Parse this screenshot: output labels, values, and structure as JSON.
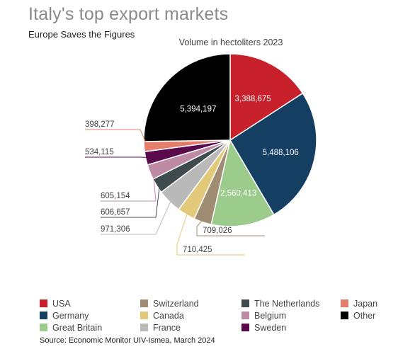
{
  "header": {
    "title": "Italy's top export markets",
    "subtitle": "Europe Saves the Figures"
  },
  "chart_data": {
    "type": "pie",
    "title": "Volume in hectoliters 2023",
    "slices": [
      {
        "name": "USA",
        "value": 3388675,
        "label": "3,388,675",
        "color": "#c8202a"
      },
      {
        "name": "Germany",
        "value": 5488106,
        "label": "5,488,106",
        "color": "#153e63"
      },
      {
        "name": "Great Britain",
        "value": 2560413,
        "label": "2,560,413",
        "color": "#9ccc8b"
      },
      {
        "name": "Switzerland",
        "value": 709026,
        "label": "709,026",
        "color": "#a08c72"
      },
      {
        "name": "Canada",
        "value": 710425,
        "label": "710,425",
        "color": "#e3c97a"
      },
      {
        "name": "France",
        "value": 971306,
        "label": "971,306",
        "color": "#b9b9b9"
      },
      {
        "name": "The Netherlands",
        "value": 606657,
        "label": "606,657",
        "color": "#3f4a4f"
      },
      {
        "name": "Belgium",
        "value": 605154,
        "label": "605,154",
        "color": "#bf8aa3"
      },
      {
        "name": "Sweden",
        "value": 534115,
        "label": "534,115",
        "color": "#5a0a4a"
      },
      {
        "name": "Japan",
        "value": 398277,
        "label": "398,277",
        "color": "#e47e6b"
      },
      {
        "name": "Other",
        "value": 5394197,
        "label": "5,394,197",
        "color": "#000000"
      }
    ],
    "legend": [
      {
        "name": "USA",
        "color": "#c8202a"
      },
      {
        "name": "Germany",
        "color": "#153e63"
      },
      {
        "name": "Great Britain",
        "color": "#9ccc8b"
      },
      {
        "name": "Switzerland",
        "color": "#a08c72"
      },
      {
        "name": "Canada",
        "color": "#e3c97a"
      },
      {
        "name": "France",
        "color": "#b9b9b9"
      },
      {
        "name": "The Netherlands",
        "color": "#3f4a4f"
      },
      {
        "name": "Belgium",
        "color": "#bf8aa3"
      },
      {
        "name": "Sweden",
        "color": "#5a0a4a"
      },
      {
        "name": "Japan",
        "color": "#e47e6b"
      },
      {
        "name": "Other",
        "color": "#000000"
      }
    ],
    "legend_position": "bottom"
  },
  "footer": {
    "source": "Source: Economic Monitor UIV-Ismea, March 2024"
  }
}
